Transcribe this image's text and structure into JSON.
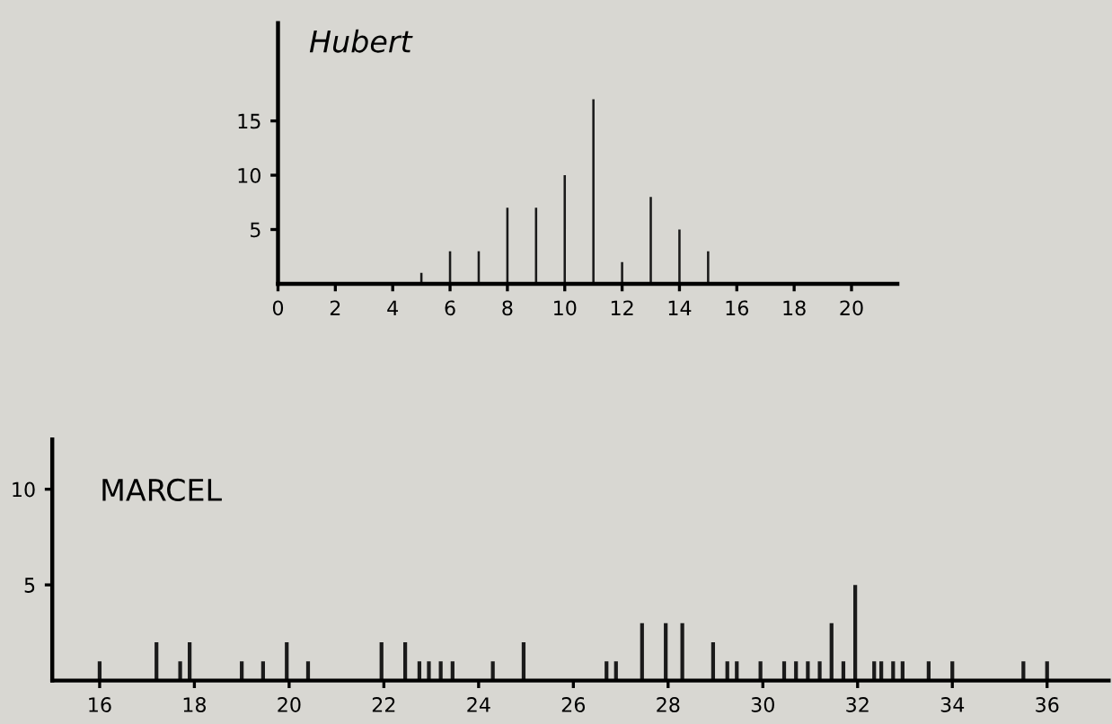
{
  "chart_data": [
    {
      "type": "bar",
      "title": "Hubert",
      "x": [
        5,
        6,
        7,
        8,
        9,
        10,
        11,
        12,
        13,
        14,
        15
      ],
      "values": [
        1,
        3,
        3,
        7,
        7,
        10,
        17,
        2,
        8,
        5,
        3
      ],
      "color": "#1a1a1a",
      "xlim": [
        0,
        21.6
      ],
      "ylim": [
        0,
        24
      ],
      "xticks": [
        0,
        2,
        4,
        6,
        8,
        10,
        12,
        14,
        16,
        18,
        20
      ],
      "yticks": [
        5,
        10,
        15
      ]
    },
    {
      "type": "bar",
      "title": "MARCEL",
      "x": [
        16,
        17.2,
        17.7,
        17.9,
        19,
        19.45,
        19.95,
        20.4,
        21.95,
        22.45,
        22.75,
        22.95,
        23.2,
        23.45,
        24.3,
        24.95,
        26.7,
        26.9,
        27.45,
        27.95,
        28.3,
        28.95,
        29.25,
        29.45,
        29.95,
        30.45,
        30.7,
        30.95,
        31.2,
        31.45,
        31.7,
        31.95,
        32.35,
        32.5,
        32.75,
        32.95,
        33.5,
        34,
        35.5,
        36
      ],
      "values": [
        1,
        2,
        1,
        2,
        1,
        1,
        2,
        1,
        2,
        2,
        1,
        1,
        1,
        1,
        1,
        2,
        1,
        1,
        3,
        3,
        3,
        2,
        1,
        1,
        1,
        1,
        1,
        1,
        1,
        3,
        1,
        5,
        1,
        1,
        1,
        1,
        1,
        1,
        1,
        1
      ],
      "color": "#1a1a1a",
      "xlim": [
        15,
        37.3
      ],
      "ylim": [
        0,
        12.6
      ],
      "xticks": [
        16,
        18,
        20,
        22,
        24,
        26,
        28,
        30,
        32,
        34,
        36
      ],
      "yticks": [
        5,
        10
      ]
    }
  ]
}
